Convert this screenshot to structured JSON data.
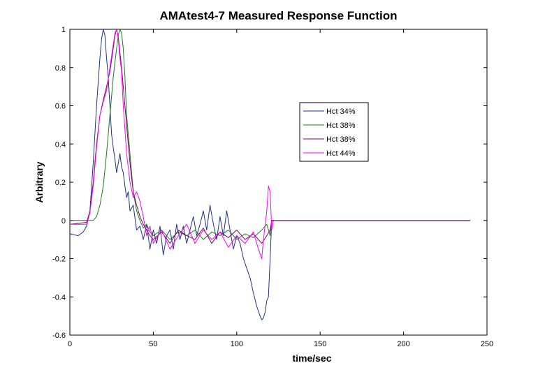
{
  "chart_data": {
    "type": "line",
    "title": "AMAtest4-7 Measured Response Function",
    "xlabel": "time/sec",
    "ylabel": "Arbitrary",
    "xlim": [
      0,
      250
    ],
    "ylim": [
      -0.6,
      1
    ],
    "xticks": [
      0,
      50,
      100,
      150,
      200,
      250
    ],
    "yticks": [
      -0.6,
      -0.4,
      -0.2,
      0,
      0.2,
      0.4,
      0.6,
      0.8,
      1
    ],
    "xtick_labels": [
      "0",
      "50",
      "100",
      "150",
      "200",
      "250"
    ],
    "ytick_labels": [
      "-0.6",
      "-0.4",
      "-0.2",
      "0",
      "0.2",
      "0.4",
      "0.6",
      "0.8",
      "1"
    ],
    "grid": false,
    "legend_position": "upper-right-inside",
    "series": [
      {
        "name": "Hct 34%",
        "color": "#1f2f8c",
        "x": [
          0,
          5,
          8,
          10,
          12,
          14,
          16,
          18,
          19,
          20,
          21,
          22,
          23,
          24,
          25,
          26,
          27,
          28,
          29,
          30,
          31,
          32,
          33,
          34,
          35,
          36,
          38,
          40,
          42,
          44,
          46,
          48,
          50,
          52,
          54,
          56,
          58,
          60,
          62,
          64,
          66,
          68,
          70,
          72,
          74,
          76,
          78,
          80,
          82,
          84,
          86,
          88,
          90,
          92,
          94,
          96,
          98,
          100,
          102,
          104,
          106,
          108,
          110,
          112,
          114,
          115,
          116,
          117,
          118,
          119,
          120,
          121,
          122,
          130,
          240
        ],
        "values": [
          -0.07,
          -0.08,
          -0.06,
          -0.03,
          0.05,
          0.3,
          0.6,
          0.85,
          0.95,
          1.0,
          0.97,
          0.85,
          0.75,
          0.6,
          0.45,
          0.38,
          0.32,
          0.25,
          0.3,
          0.35,
          0.28,
          0.25,
          0.18,
          0.12,
          0.15,
          0.05,
          0.08,
          -0.05,
          -0.03,
          -0.1,
          -0.02,
          -0.15,
          -0.05,
          -0.12,
          -0.03,
          -0.18,
          -0.08,
          -0.05,
          -0.15,
          -0.02,
          -0.1,
          -0.03,
          -0.12,
          -0.05,
          0.02,
          -0.08,
          -0.02,
          0.05,
          -0.05,
          0.08,
          -0.02,
          -0.1,
          0.02,
          -0.08,
          0.05,
          -0.05,
          -0.15,
          -0.08,
          -0.12,
          -0.2,
          -0.25,
          -0.3,
          -0.38,
          -0.45,
          -0.5,
          -0.52,
          -0.51,
          -0.48,
          -0.42,
          -0.4,
          -0.2,
          0,
          0,
          0,
          0
        ]
      },
      {
        "name": "Hct 38%",
        "color": "#1e7a1e",
        "x": [
          0,
          10,
          12,
          14,
          16,
          18,
          20,
          22,
          24,
          26,
          28,
          29,
          30,
          31,
          32,
          33,
          34,
          36,
          38,
          40,
          42,
          44,
          46,
          48,
          50,
          55,
          60,
          65,
          70,
          75,
          80,
          85,
          90,
          95,
          100,
          105,
          110,
          115,
          118,
          120,
          121,
          122,
          130,
          240
        ],
        "values": [
          0,
          0,
          0,
          0,
          0.02,
          0.08,
          0.18,
          0.35,
          0.55,
          0.75,
          0.9,
          0.97,
          1.0,
          0.98,
          0.9,
          0.75,
          0.55,
          0.35,
          0.15,
          0.05,
          0.0,
          -0.04,
          -0.02,
          -0.06,
          -0.08,
          -0.05,
          -0.1,
          -0.06,
          -0.08,
          -0.05,
          -0.1,
          -0.06,
          -0.08,
          -0.05,
          -0.1,
          -0.07,
          -0.09,
          -0.05,
          -0.02,
          -0.08,
          0,
          0,
          0,
          0
        ]
      },
      {
        "name": "Hct 38%",
        "color": "#800060",
        "x": [
          0,
          10,
          12,
          14,
          16,
          18,
          20,
          22,
          24,
          26,
          27,
          28,
          29,
          30,
          31,
          32,
          34,
          36,
          38,
          40,
          42,
          44,
          46,
          48,
          50,
          55,
          60,
          65,
          70,
          75,
          80,
          85,
          90,
          95,
          100,
          105,
          110,
          115,
          118,
          120,
          121,
          122,
          130,
          240
        ],
        "values": [
          -0.02,
          -0.01,
          0.05,
          0.2,
          0.4,
          0.55,
          0.63,
          0.7,
          0.78,
          0.9,
          0.97,
          1.0,
          0.96,
          0.88,
          0.8,
          0.7,
          0.5,
          0.3,
          0.15,
          0.08,
          0.02,
          -0.02,
          -0.05,
          -0.08,
          -0.1,
          -0.06,
          -0.12,
          -0.05,
          -0.08,
          -0.1,
          -0.04,
          -0.12,
          -0.06,
          -0.09,
          -0.05,
          -0.1,
          -0.07,
          -0.12,
          -0.08,
          -0.05,
          0,
          0,
          0,
          0
        ]
      },
      {
        "name": "Hct 44%",
        "color": "#ff00ff",
        "x": [
          0,
          10,
          12,
          14,
          16,
          18,
          20,
          22,
          24,
          26,
          27,
          28,
          29,
          30,
          31,
          32,
          34,
          36,
          38,
          40,
          42,
          44,
          46,
          48,
          50,
          55,
          60,
          65,
          70,
          75,
          80,
          85,
          90,
          95,
          100,
          105,
          110,
          113,
          115,
          116,
          118,
          119,
          120,
          121,
          122,
          130,
          240
        ],
        "values": [
          -0.02,
          -0.02,
          0.04,
          0.18,
          0.38,
          0.55,
          0.62,
          0.68,
          0.8,
          0.92,
          0.98,
          1.0,
          0.95,
          0.85,
          0.78,
          0.6,
          0.35,
          0.2,
          0.12,
          0.15,
          0.1,
          0.02,
          -0.08,
          -0.03,
          -0.12,
          -0.05,
          -0.15,
          -0.08,
          -0.02,
          -0.12,
          -0.05,
          -0.1,
          -0.06,
          -0.14,
          -0.08,
          -0.12,
          -0.06,
          -0.15,
          -0.2,
          -0.1,
          0.05,
          0.18,
          0.15,
          -0.05,
          0,
          0,
          0
        ]
      }
    ]
  }
}
